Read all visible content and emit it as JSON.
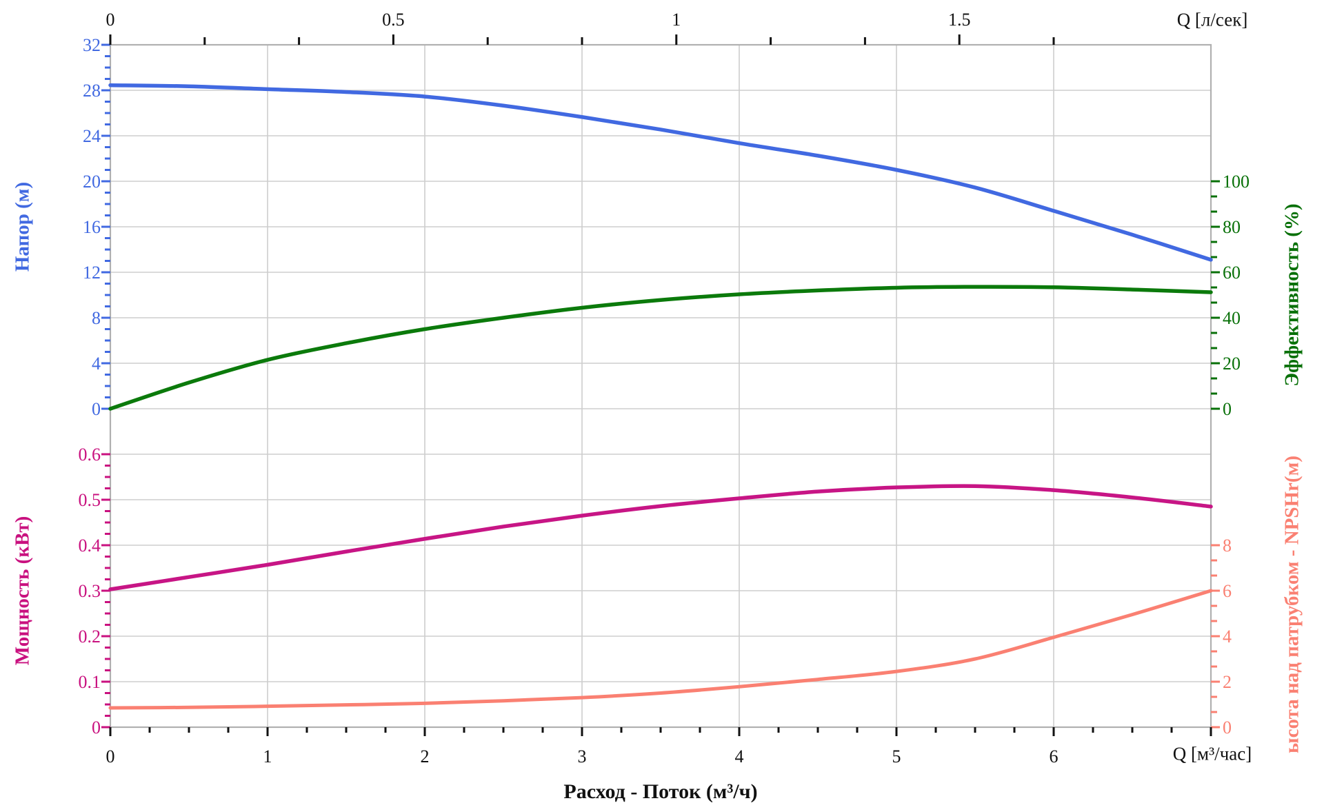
{
  "chart_data": {
    "type": "line",
    "title": "Расход - Поток (м³/ч)",
    "x_axis_bottom": {
      "corner_label": "Q [м³/час]",
      "title": "Расход - Поток (м³/ч)",
      "min": 0,
      "max": 7,
      "major_tick_values": [
        0,
        1,
        2,
        3,
        4,
        5,
        6
      ],
      "minor_per_major": 4,
      "color": "#111111"
    },
    "x_axis_top": {
      "corner_label": "Q [л/сек]",
      "major_tick_values": [
        0,
        0.5,
        1,
        1.5
      ],
      "minor_per_major": 3,
      "units_per_bottom_unit": 0.2778,
      "color": "#111111"
    },
    "y_axis_head": {
      "title": "Напор (м)",
      "side": "left",
      "min": 0,
      "max": 32,
      "major_tick_values": [
        32,
        28,
        24,
        20,
        16,
        12,
        8,
        4,
        0
      ],
      "minor_per_major": 4,
      "color": "#4169E1"
    },
    "y_axis_power": {
      "title": "Мощность (кВт)",
      "side": "left",
      "min": 0,
      "max": 0.6,
      "major_tick_values": [
        0.6,
        0.5,
        0.4,
        0.3,
        0.2,
        0.1,
        0
      ],
      "minor_per_major": 4,
      "color": "#C9117F"
    },
    "y_axis_efficiency": {
      "title": "Эффективность (%)",
      "side": "right",
      "min": 0,
      "max": 100,
      "major_tick_values": [
        100,
        80,
        60,
        40,
        20,
        0
      ],
      "minor_per_major": 3,
      "color": "#087008"
    },
    "y_axis_npsh": {
      "title": "ысота над патрубком - NPSHr(м)",
      "side": "right",
      "min": 0,
      "max": 8,
      "major_tick_values": [
        8,
        6,
        4,
        2,
        0
      ],
      "minor_per_major": 3,
      "color": "#FA8072"
    },
    "grid": {
      "show": true,
      "color": "#cdcdcd",
      "frame_color": "#b0b0b0"
    },
    "series": [
      {
        "name": "head-curve",
        "axis": "head",
        "color": "#4169E1",
        "stroke_width": 5.5,
        "points": [
          [
            0,
            28.45
          ],
          [
            0.5,
            28.35
          ],
          [
            1,
            28.1
          ],
          [
            1.5,
            27.85
          ],
          [
            2,
            27.45
          ],
          [
            2.5,
            26.65
          ],
          [
            3,
            25.65
          ],
          [
            3.5,
            24.55
          ],
          [
            4,
            23.35
          ],
          [
            4.5,
            22.25
          ],
          [
            5,
            21.0
          ],
          [
            5.5,
            19.45
          ],
          [
            6,
            17.4
          ],
          [
            6.5,
            15.3
          ],
          [
            7,
            13.1
          ]
        ]
      },
      {
        "name": "efficiency-curve",
        "axis": "efficiency",
        "color": "#0B7A0B",
        "stroke_width": 5.5,
        "points": [
          [
            0,
            0
          ],
          [
            0.5,
            11.5
          ],
          [
            1,
            21.5
          ],
          [
            1.5,
            28.8
          ],
          [
            2,
            35
          ],
          [
            2.5,
            40
          ],
          [
            3,
            44.4
          ],
          [
            3.5,
            47.8
          ],
          [
            4,
            50.3
          ],
          [
            4.5,
            52
          ],
          [
            5,
            53.2
          ],
          [
            5.5,
            53.6
          ],
          [
            6,
            53.4
          ],
          [
            6.5,
            52.4
          ],
          [
            7,
            51.2
          ]
        ]
      },
      {
        "name": "power-curve",
        "axis": "power",
        "color": "#C71585",
        "stroke_width": 5.5,
        "points": [
          [
            0,
            0.303
          ],
          [
            0.5,
            0.33
          ],
          [
            1,
            0.357
          ],
          [
            1.5,
            0.386
          ],
          [
            2,
            0.414
          ],
          [
            2.5,
            0.441
          ],
          [
            3,
            0.465
          ],
          [
            3.5,
            0.486
          ],
          [
            4,
            0.503
          ],
          [
            4.5,
            0.518
          ],
          [
            5,
            0.527
          ],
          [
            5.5,
            0.53
          ],
          [
            6,
            0.521
          ],
          [
            6.5,
            0.505
          ],
          [
            7,
            0.485
          ]
        ]
      },
      {
        "name": "npsh-curve",
        "axis": "npsh",
        "color": "#FA8072",
        "stroke_width": 5,
        "points": [
          [
            0,
            0.85
          ],
          [
            0.5,
            0.87
          ],
          [
            1,
            0.92
          ],
          [
            1.5,
            0.98
          ],
          [
            2,
            1.05
          ],
          [
            2.5,
            1.16
          ],
          [
            3,
            1.3
          ],
          [
            3.5,
            1.5
          ],
          [
            4,
            1.78
          ],
          [
            4.5,
            2.1
          ],
          [
            5,
            2.45
          ],
          [
            5.5,
            3.0
          ],
          [
            6,
            3.95
          ],
          [
            6.5,
            4.95
          ],
          [
            7,
            6.0
          ]
        ]
      }
    ]
  }
}
